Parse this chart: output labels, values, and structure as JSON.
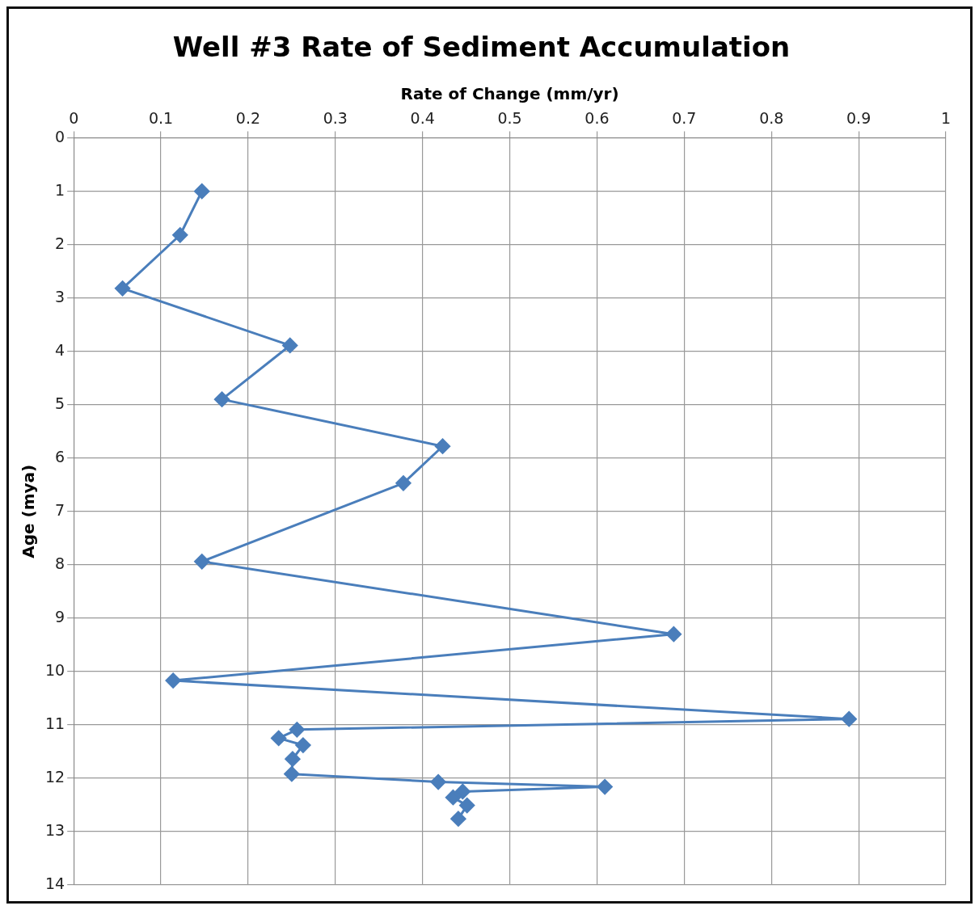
{
  "chart_data": {
    "type": "line",
    "title": "Well #3 Rate of Sediment Accumulation",
    "xlabel": "Rate of Change (mm/yr)",
    "ylabel": "Age (mya)",
    "xlim": [
      0,
      1
    ],
    "xticks": [
      0,
      0.1,
      0.2,
      0.3,
      0.4,
      0.5,
      0.6,
      0.7,
      0.8,
      0.9,
      1
    ],
    "ylim": [
      14,
      0
    ],
    "yticks": [
      0,
      1,
      2,
      3,
      4,
      5,
      6,
      7,
      8,
      9,
      10,
      11,
      12,
      13,
      14
    ],
    "grid": true,
    "legend": false,
    "marker": "diamond",
    "line_style": "solid",
    "series": [
      {
        "color": "#4a7ebb",
        "x": [
          0.147,
          0.122,
          0.056,
          0.248,
          0.17,
          0.423,
          0.378,
          0.147,
          0.688,
          0.114,
          0.889,
          0.256,
          0.235,
          0.263,
          0.251,
          0.25,
          0.418,
          0.609,
          0.446,
          0.435,
          0.451,
          0.441
        ],
        "values": [
          1.0,
          1.82,
          2.82,
          3.89,
          4.9,
          5.78,
          6.47,
          7.94,
          9.3,
          10.17,
          10.89,
          11.09,
          11.25,
          11.38,
          11.64,
          11.92,
          12.07,
          12.16,
          12.25,
          12.36,
          12.51,
          12.76
        ]
      }
    ]
  }
}
